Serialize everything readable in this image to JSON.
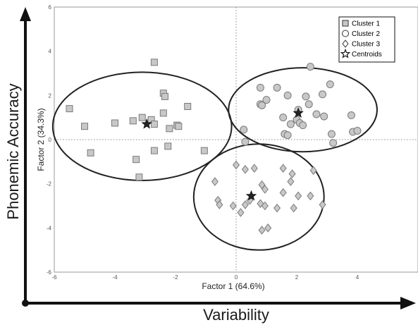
{
  "chart_data": {
    "type": "scatter",
    "title": "",
    "xlabel": "Factor 1 (64.6%)",
    "ylabel": "Factor 2 (34.3%)",
    "xlim": [
      -6,
      6
    ],
    "ylim": [
      -6,
      6
    ],
    "xticks": [
      -6,
      -4,
      -2,
      0,
      2,
      4
    ],
    "yticks": [
      -6,
      -4,
      -2,
      0,
      2,
      4,
      6
    ],
    "grid": false,
    "reference_lines": {
      "x": 0,
      "y": 0,
      "style": "dotted"
    },
    "legend_position": "top-right",
    "outer_axes": {
      "x_label": "Variability",
      "y_label": "Phonemic Accuracy"
    },
    "series": [
      {
        "name": "Cluster 1",
        "marker": "square",
        "points": [
          [
            -5.5,
            1.4
          ],
          [
            -5.0,
            0.6
          ],
          [
            -4.8,
            -0.6
          ],
          [
            -4.0,
            0.75
          ],
          [
            -3.4,
            0.85
          ],
          [
            -3.1,
            1.0
          ],
          [
            -3.3,
            -0.9
          ],
          [
            -3.2,
            -1.7
          ],
          [
            -2.8,
            0.9
          ],
          [
            -2.7,
            0.7
          ],
          [
            -2.7,
            -0.5
          ],
          [
            -2.7,
            3.5
          ],
          [
            -2.4,
            2.1
          ],
          [
            -2.4,
            1.2
          ],
          [
            -2.35,
            1.95
          ],
          [
            -2.2,
            0.5
          ],
          [
            -2.25,
            -0.3
          ],
          [
            -1.95,
            0.65
          ],
          [
            -1.9,
            0.6
          ],
          [
            -1.6,
            1.5
          ],
          [
            -1.05,
            -0.5
          ]
        ]
      },
      {
        "name": "Cluster 2",
        "marker": "circle",
        "points": [
          [
            0.25,
            0.45
          ],
          [
            0.3,
            -0.1
          ],
          [
            0.8,
            1.6
          ],
          [
            0.8,
            2.35
          ],
          [
            0.85,
            1.55
          ],
          [
            1.0,
            1.8
          ],
          [
            1.35,
            2.35
          ],
          [
            1.55,
            1.0
          ],
          [
            1.6,
            0.25
          ],
          [
            1.7,
            0.2
          ],
          [
            1.7,
            2.0
          ],
          [
            1.8,
            0.7
          ],
          [
            2.0,
            0.9
          ],
          [
            2.05,
            1.35
          ],
          [
            2.1,
            0.75
          ],
          [
            2.2,
            0.65
          ],
          [
            2.3,
            1.95
          ],
          [
            2.4,
            1.6
          ],
          [
            2.45,
            3.3
          ],
          [
            2.65,
            1.15
          ],
          [
            2.85,
            2.05
          ],
          [
            2.9,
            1.05
          ],
          [
            3.1,
            2.5
          ],
          [
            3.15,
            0.25
          ],
          [
            3.2,
            -0.15
          ],
          [
            3.8,
            1.1
          ],
          [
            3.85,
            0.35
          ],
          [
            4.0,
            0.4
          ]
        ]
      },
      {
        "name": "Cluster 3",
        "marker": "diamond",
        "points": [
          [
            -0.7,
            -1.9
          ],
          [
            -0.6,
            -2.75
          ],
          [
            -0.55,
            -2.95
          ],
          [
            -0.1,
            -3.0
          ],
          [
            0.0,
            -1.15
          ],
          [
            0.15,
            -3.3
          ],
          [
            0.3,
            -1.35
          ],
          [
            0.3,
            -2.95
          ],
          [
            0.45,
            -2.75
          ],
          [
            0.6,
            -1.3
          ],
          [
            0.8,
            -2.9
          ],
          [
            0.85,
            -2.05
          ],
          [
            0.85,
            -4.1
          ],
          [
            0.95,
            -3.0
          ],
          [
            0.95,
            -2.25
          ],
          [
            1.05,
            -4.0
          ],
          [
            1.35,
            -3.1
          ],
          [
            1.55,
            -2.4
          ],
          [
            1.55,
            -1.3
          ],
          [
            1.8,
            -1.9
          ],
          [
            1.85,
            -1.55
          ],
          [
            1.9,
            -3.1
          ],
          [
            2.05,
            -2.55
          ],
          [
            2.45,
            -2.55
          ],
          [
            2.55,
            -1.4
          ],
          [
            2.85,
            -2.95
          ]
        ]
      },
      {
        "name": "Centroids",
        "marker": "star",
        "points": [
          [
            -2.95,
            0.7
          ],
          [
            2.05,
            1.2
          ],
          [
            0.5,
            -2.55
          ]
        ]
      }
    ],
    "ellipses": [
      {
        "cluster": "Cluster 1",
        "cx": -3.1,
        "cy": 0.6,
        "rx": 2.95,
        "ry": 2.45
      },
      {
        "cluster": "Cluster 2",
        "cx": 2.2,
        "cy": 1.35,
        "rx": 2.45,
        "ry": 1.9
      },
      {
        "cluster": "Cluster 3",
        "cx": 0.75,
        "cy": -2.6,
        "rx": 2.15,
        "ry": 2.4
      }
    ]
  }
}
